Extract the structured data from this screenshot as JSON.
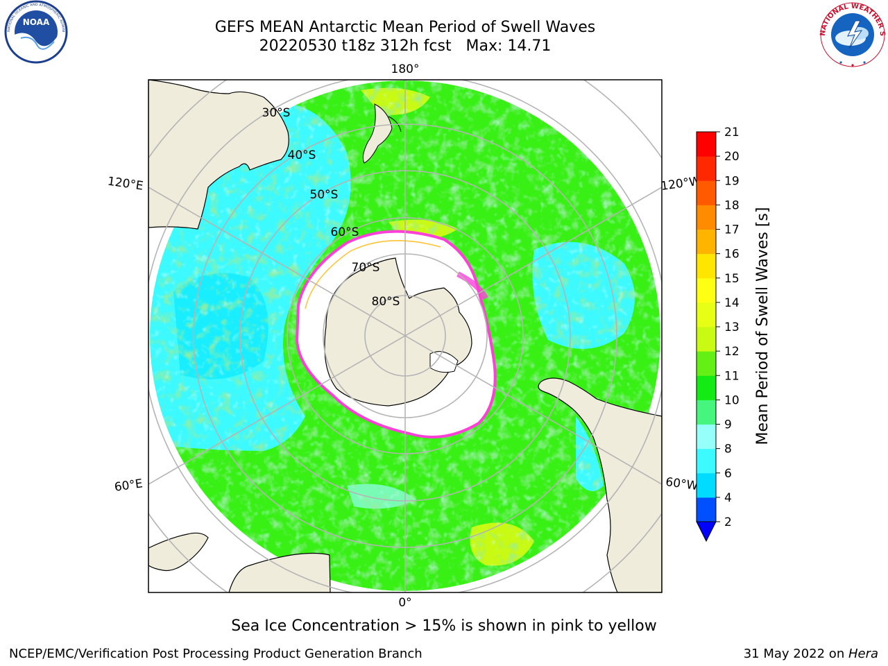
{
  "header": {
    "title_line1": "GEFS MEAN Antarctic Mean Period of Swell Waves",
    "title_line2": "20220530 t18z 312h fcst   Max: 14.71"
  },
  "logos": {
    "left": "NOAA",
    "left_ring_text": "NATIONAL OCEANIC AND ATMOSPHERIC ADMINISTRATION · U.S. DEPARTMENT OF COMMERCE",
    "right_ring_text": "NATIONAL WEATHER SERVICE"
  },
  "map": {
    "projection": "south-polar-stereographic",
    "longitude_labels": {
      "top": "180°",
      "bottom": "0°",
      "upper_left": "120°E",
      "lower_left": "60°E",
      "upper_right": "120°W",
      "lower_right": "60°W"
    },
    "latitude_labels": [
      "30°S",
      "40°S",
      "50°S",
      "60°S",
      "70°S",
      "80°S"
    ],
    "colors": {
      "land": "#efecdc",
      "ocean_cyan": "#3dfbfb",
      "ocean_green": "#44f01a",
      "ice_edge": "#ff3fd8",
      "grid": "#b4b4b4"
    }
  },
  "colorbar": {
    "label": "Mean Period of Swell Waves [s]",
    "ticks": [
      "2",
      "4",
      "6",
      "8",
      "9",
      "10",
      "11",
      "12",
      "13",
      "14",
      "15",
      "16",
      "17",
      "18",
      "19",
      "20",
      "21"
    ],
    "colors": [
      "#0050ff",
      "#00dcff",
      "#3cfaff",
      "#96fffa",
      "#46f57d",
      "#14eb14",
      "#64f014",
      "#c8fa14",
      "#e6ff14",
      "#ffff14",
      "#ffe600",
      "#ffb400",
      "#ff8c00",
      "#ff5a00",
      "#ff2800",
      "#ff0000"
    ],
    "extend_color": "#0000ff"
  },
  "note": "Sea Ice Concentration > 15% is shown in pink to yellow",
  "footer": {
    "left": "NCEP/EMC/Verification Post Processing Product Generation Branch",
    "right_date": "31 May 2022 on ",
    "right_machine": "Hera"
  }
}
